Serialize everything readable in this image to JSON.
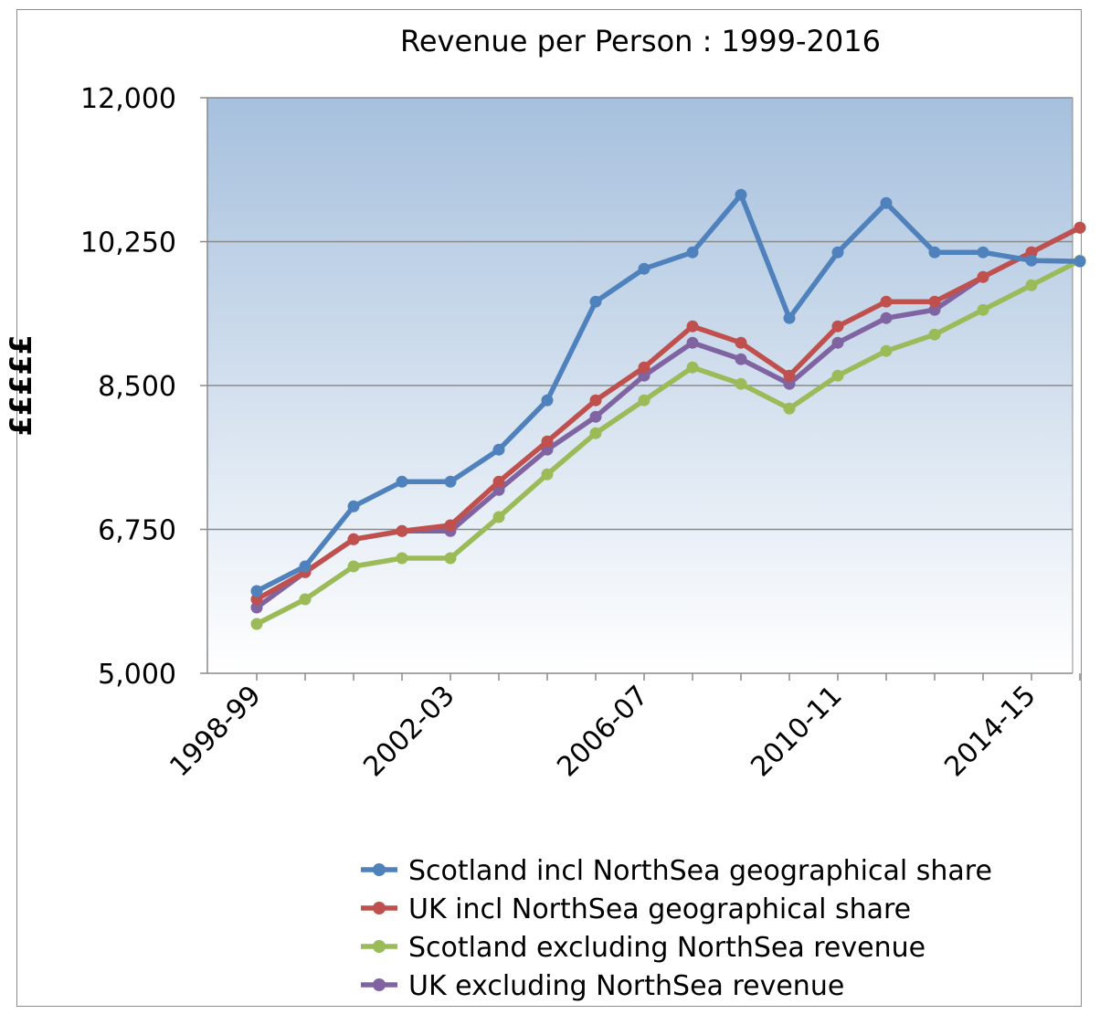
{
  "chart_data": {
    "type": "line",
    "title": "Revenue per Person : 1999-2016",
    "xlabel": "",
    "ylabel": "£££££",
    "ylim": [
      5000,
      12000
    ],
    "yticks": [
      5000,
      6750,
      8500,
      10250,
      12000
    ],
    "ytick_labels": [
      "5,000",
      "6,750",
      "8,500",
      "10,250",
      "12,000"
    ],
    "x": [
      "1998-99",
      "1999-00",
      "2000-01",
      "2001-02",
      "2002-03",
      "2003-04",
      "2004-05",
      "2005-06",
      "2006-07",
      "2007-08",
      "2008-09",
      "2009-10",
      "2010-11",
      "2011-12",
      "2012-13",
      "2013-14",
      "2014-15",
      "2015-16"
    ],
    "xtick_labels_shown": [
      "1998-99",
      "2002-03",
      "2006-07",
      "2010-11",
      "2014-15"
    ],
    "grid": true,
    "legend_position": "bottom",
    "series": [
      {
        "name": "Scotland incl NorthSea geographical share",
        "color": "#4f81bd",
        "values": [
          6000,
          6300,
          7030,
          7330,
          7330,
          7720,
          8320,
          9520,
          9920,
          10120,
          10820,
          9320,
          10120,
          10720,
          10120,
          10120,
          10020,
          10010
        ]
      },
      {
        "name": "UK incl NorthSea geographical share",
        "color": "#c0504d",
        "values": [
          5900,
          6230,
          6630,
          6730,
          6800,
          7330,
          7820,
          8320,
          8720,
          9220,
          9020,
          8620,
          9220,
          9520,
          9520,
          9820,
          10120,
          10420
        ]
      },
      {
        "name": "Scotland excluding NorthSea revenue",
        "color": "#9bbb59",
        "values": [
          5600,
          5900,
          6300,
          6400,
          6400,
          6900,
          7420,
          7920,
          8320,
          8720,
          8520,
          8220,
          8620,
          8920,
          9120,
          9420,
          9720,
          10020
        ]
      },
      {
        "name": "UK excluding NorthSea revenue",
        "color": "#8064a2",
        "values": [
          5800,
          6230,
          6630,
          6730,
          6730,
          7230,
          7720,
          8120,
          8620,
          9020,
          8820,
          8520,
          9020,
          9320,
          9420,
          9820,
          10120,
          10420
        ]
      }
    ]
  }
}
